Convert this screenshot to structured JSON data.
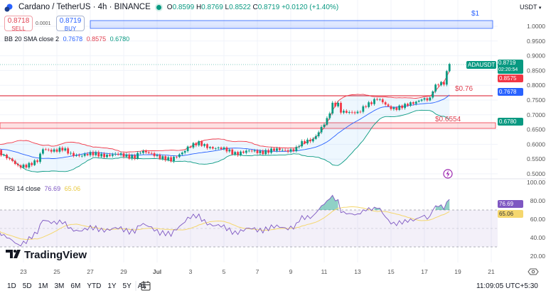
{
  "header": {
    "symbol_title": "Cardano / TetherUS · 4h · BINANCE",
    "ohlc": {
      "o_label": "O",
      "o": "0.8599",
      "h_label": "H",
      "h": "0.8769",
      "l_label": "L",
      "l": "0.8522",
      "c_label": "C",
      "c": "0.8719",
      "change": "+0.0120 (+1.40%)"
    },
    "currency": "USDT",
    "market_status_color": "#089981"
  },
  "trade": {
    "sell_price": "0.8718",
    "sell_label": "SELL",
    "spread": "0.0001",
    "buy_price": "0.8719",
    "buy_label": "BUY"
  },
  "indicators": {
    "bb": {
      "label": "BB 20 SMA close 2",
      "basis": "0.7678",
      "upper": "0.8575",
      "lower": "0.6780"
    },
    "rsi": {
      "label": "RSI 14 close",
      "value": "76.69",
      "ma": "65.06"
    }
  },
  "badges": {
    "symbol": "ADAUSDT",
    "last_price": "0.8719",
    "countdown": "02:20:54",
    "bb_upper": "0.8575",
    "bb_basis": "0.7678",
    "bb_lower": "0.6780"
  },
  "drawings": {
    "target_zone_label": "$1",
    "resistance_label": "$0.76",
    "support_label": "$0.6554"
  },
  "colors": {
    "up": "#089981",
    "down": "#f23645",
    "bb_basis": "#2962ff",
    "bb_upper": "#f23645",
    "bb_lower": "#089981",
    "rsi": "#7e57c2",
    "rsi_ma": "#f5d76e",
    "zone_blue": "#2962ff",
    "zone_red": "#f23645"
  },
  "price_axis": {
    "ticks": [
      "1.0000",
      "0.9500",
      "0.9000",
      "0.8500",
      "0.8000",
      "0.7500",
      "0.7000",
      "0.6500",
      "0.6000",
      "0.5500",
      "0.5000"
    ]
  },
  "rsi_axis": {
    "ticks": [
      "100.00",
      "80.00",
      "60.00",
      "40.00",
      "20.00"
    ]
  },
  "time_axis": {
    "ticks": [
      "23",
      "25",
      "27",
      "29",
      "Jul",
      "3",
      "5",
      "7",
      "9",
      "11",
      "13",
      "15",
      "17",
      "19",
      "21"
    ]
  },
  "toolbar": {
    "ranges": [
      "1D",
      "5D",
      "1M",
      "3M",
      "6M",
      "YTD",
      "1Y",
      "5Y",
      "All"
    ],
    "clock": "11:09:05 UTC+5:30"
  },
  "logo_text": "TradingView",
  "chart_data": {
    "type": "candlestick",
    "title": "Cardano / TetherUS · 4h · BINANCE",
    "interval": "4h",
    "price_range": [
      0.49,
      1.05
    ],
    "rsi_range": [
      20,
      100
    ],
    "rsi_bands": [
      70,
      50,
      30
    ],
    "grid": true,
    "levels": [
      {
        "label": "$1",
        "type": "zone",
        "from": 0.993,
        "to": 1.019
      },
      {
        "label": "$0.76",
        "type": "line",
        "value": 0.764
      },
      {
        "label": "$0.6554",
        "type": "zone",
        "from": 0.654,
        "to": 0.673
      }
    ],
    "price_series": {
      "note": "approximate closes read from chart",
      "keyframes": [
        [
          "Jun 21 12:00",
          0.579
        ],
        [
          "Jun 22 16:00",
          0.524
        ],
        [
          "Jun 23 20:00",
          0.541
        ],
        [
          "Jun 24 04:00",
          0.582
        ],
        [
          "Jun 25 08:00",
          0.582
        ],
        [
          "Jun 25 20:00",
          0.565
        ],
        [
          "Jun 28 00:00",
          0.565
        ],
        [
          "Jun 29 16:00",
          0.56
        ],
        [
          "Jun 30 00:00",
          0.572
        ],
        [
          "Jun 30 20:00",
          0.567
        ],
        [
          "Jul 1 20:00",
          0.543
        ],
        [
          "Jul 2 20:00",
          0.591
        ],
        [
          "Jul 3 12:00",
          0.601
        ],
        [
          "Jul 4 08:00",
          0.59
        ],
        [
          "Jul 5 16:00",
          0.572
        ],
        [
          "Jul 8 04:00",
          0.579
        ],
        [
          "Jul 9 08:00",
          0.584
        ],
        [
          "Jul 9 12:00",
          0.596
        ],
        [
          "Jul 10 08:00",
          0.62
        ],
        [
          "Jul 10 20:00",
          0.656
        ],
        [
          "Jul 11 04:00",
          0.68
        ],
        [
          "Jul 11 12:00",
          0.733
        ],
        [
          "Jul 11 20:00",
          0.738
        ],
        [
          "Jul 12 00:00",
          0.716
        ],
        [
          "Jul 12 16:00",
          0.704
        ],
        [
          "Jul 13 00:00",
          0.704
        ],
        [
          "Jul 13 12:00",
          0.736
        ],
        [
          "Jul 14 04:00",
          0.752
        ],
        [
          "Jul 14 20:00",
          0.728
        ],
        [
          "Jul 15 04:00",
          0.724
        ],
        [
          "Jul 15 20:00",
          0.728
        ],
        [
          "Jul 16 08:00",
          0.74
        ],
        [
          "Jul 16 20:00",
          0.757
        ],
        [
          "Jul 17 08:00",
          0.75
        ],
        [
          "Jul 17 12:00",
          0.781
        ],
        [
          "Jul 17 20:00",
          0.805
        ],
        [
          "Jul 18 04:00",
          0.81
        ],
        [
          "Jul 18 08:00",
          0.849
        ],
        [
          "Jul 18 12:00",
          0.8719
        ]
      ]
    }
  }
}
